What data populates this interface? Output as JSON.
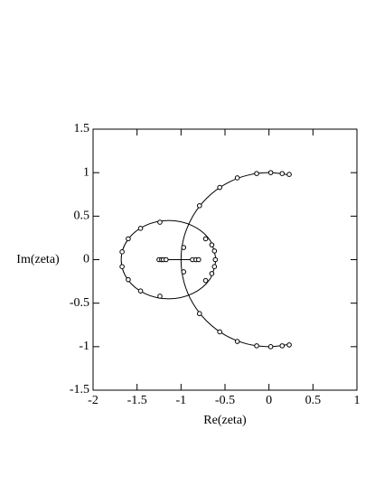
{
  "chart_data": {
    "type": "scatter",
    "xlabel": "Re(zeta)",
    "ylabel": "Im(zeta)",
    "xlim": [
      -2,
      1
    ],
    "ylim": [
      -1.5,
      1.5
    ],
    "xticks": [
      -2,
      -1.5,
      -1,
      -0.5,
      0,
      0.5,
      1
    ],
    "yticks": [
      -1.5,
      -1,
      -0.5,
      0,
      0.5,
      1,
      1.5
    ],
    "color": "#000000",
    "points": {
      "x": [
        0.23,
        0.15,
        0.02,
        -0.14,
        -0.36,
        -0.56,
        -0.79,
        0.23,
        0.15,
        0.02,
        -0.14,
        -0.36,
        -0.56,
        -0.79,
        -1.24,
        -1.46,
        -1.6,
        -1.67,
        -1.67,
        -1.6,
        -1.46,
        -1.24,
        -0.72,
        -0.65,
        -0.62,
        -0.61,
        -0.62,
        -0.65,
        -0.72,
        -0.97,
        -0.97,
        -1.25,
        -1.22,
        -1.2,
        -1.17,
        -0.87,
        -0.83,
        -0.8
      ],
      "y": [
        0.98,
        0.99,
        1.0,
        0.99,
        0.94,
        0.83,
        0.62,
        -0.98,
        -0.99,
        -1.0,
        -0.99,
        -0.94,
        -0.83,
        -0.62,
        0.43,
        0.36,
        0.24,
        0.09,
        -0.08,
        -0.23,
        -0.36,
        -0.42,
        0.24,
        0.17,
        0.1,
        0,
        -0.08,
        -0.16,
        -0.24,
        0.14,
        -0.14,
        0,
        0,
        0,
        0,
        0,
        0,
        0
      ]
    },
    "curves": [
      {
        "x": [
          0.225,
          0,
          -0.259,
          -0.5,
          -0.707,
          -0.866,
          -0.966,
          -1,
          -0.966,
          -0.866,
          -0.707,
          -0.5,
          -0.259,
          0,
          0.225
        ],
        "y": [
          0.974,
          1,
          0.966,
          0.866,
          0.707,
          0.5,
          0.259,
          0,
          -0.259,
          -0.5,
          -0.707,
          -0.866,
          -0.966,
          -1,
          -0.974
        ]
      },
      {
        "x": [
          -0.6,
          -0.672,
          -0.87,
          -1.14,
          -1.41,
          -1.608,
          -1.68,
          -1.608,
          -1.41,
          -1.14,
          -0.87,
          -0.672,
          -0.6
        ],
        "y": [
          0,
          0.225,
          0.39,
          0.45,
          0.39,
          0.225,
          0,
          -0.225,
          -0.39,
          -0.45,
          -0.39,
          -0.225,
          0
        ]
      },
      {
        "x": [
          -1.25,
          -0.8
        ],
        "y": [
          0,
          0
        ]
      }
    ]
  }
}
